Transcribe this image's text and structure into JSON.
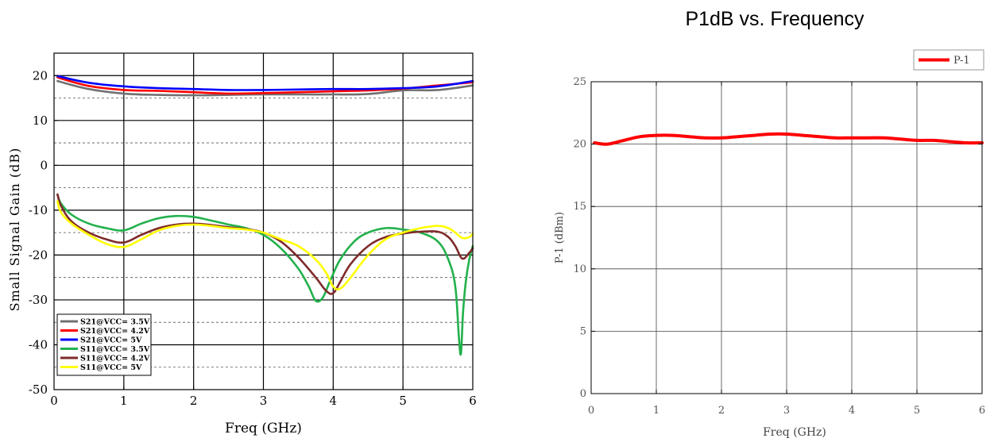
{
  "chart_data": [
    {
      "type": "line",
      "title": "",
      "xlabel": "Freq (GHz)",
      "ylabel": "Small Signal Gain (dB)",
      "xlim": [
        0,
        6
      ],
      "ylim": [
        -50,
        25
      ],
      "xticks": [
        "0",
        "1",
        "2",
        "3",
        "4",
        "5",
        "6"
      ],
      "yticks": [
        "-50",
        "-40",
        "-30",
        "-20",
        "-10",
        "0",
        "10",
        "20"
      ],
      "grid": true,
      "legend_position": "bottom-left",
      "series": [
        {
          "name": "S21@VCC= 3.5V",
          "color": "#707070",
          "x": [
            0.05,
            0.5,
            1,
            1.5,
            2,
            2.5,
            3,
            3.5,
            4,
            4.5,
            5,
            5.5,
            6
          ],
          "y": [
            18.8,
            17.0,
            16.0,
            15.7,
            15.6,
            15.7,
            15.8,
            15.8,
            15.8,
            15.9,
            16.7,
            16.8,
            17.8
          ]
        },
        {
          "name": "S21@VCC= 4.2V",
          "color": "#ff0000",
          "x": [
            0.05,
            0.5,
            1,
            1.5,
            2,
            2.5,
            3,
            3.5,
            4,
            4.5,
            5,
            5.5,
            6
          ],
          "y": [
            19.6,
            17.7,
            16.8,
            16.6,
            16.3,
            16.0,
            16.1,
            16.3,
            16.5,
            16.7,
            17.1,
            17.8,
            18.5
          ]
        },
        {
          "name": "S21@VCC= 5V",
          "color": "#0000ff",
          "x": [
            0.05,
            0.5,
            1,
            1.5,
            2,
            2.5,
            3,
            3.5,
            4,
            4.5,
            5,
            5.5,
            6
          ],
          "y": [
            19.9,
            18.4,
            17.6,
            17.2,
            17.0,
            16.8,
            16.8,
            16.9,
            17.0,
            17.0,
            17.2,
            17.6,
            18.8
          ]
        },
        {
          "name": "S11@VCC= 3.5V",
          "color": "#22b14c",
          "x": [
            0.05,
            0.1,
            0.25,
            0.5,
            0.75,
            1,
            1.25,
            1.5,
            1.75,
            2,
            2.25,
            2.5,
            2.75,
            3,
            3.25,
            3.5,
            3.65,
            3.75,
            3.85,
            3.95,
            4.1,
            4.3,
            4.5,
            4.75,
            5,
            5.25,
            5.5,
            5.65,
            5.75,
            5.8,
            5.83,
            5.86,
            5.9,
            5.95,
            6
          ],
          "y": [
            -6.5,
            -8.5,
            -11,
            -13,
            -14,
            -14.5,
            -13,
            -11.8,
            -11.3,
            -11.5,
            -12.3,
            -13.2,
            -14,
            -15.5,
            -18.5,
            -23,
            -27,
            -30.2,
            -29.5,
            -26,
            -21,
            -17,
            -15,
            -14,
            -14.3,
            -15,
            -17,
            -21,
            -27,
            -38,
            -42,
            -33,
            -26,
            -21,
            -18
          ]
        },
        {
          "name": "S11@VCC= 4.2V",
          "color": "#7f2a2a",
          "x": [
            0.05,
            0.1,
            0.25,
            0.5,
            0.75,
            1,
            1.25,
            1.5,
            1.75,
            2,
            2.25,
            2.5,
            2.75,
            3,
            3.25,
            3.5,
            3.75,
            3.9,
            4,
            4.1,
            4.25,
            4.5,
            4.75,
            5,
            5.25,
            5.5,
            5.65,
            5.75,
            5.85,
            5.95,
            6
          ],
          "y": [
            -6.5,
            -9,
            -12.5,
            -15,
            -16.5,
            -17.2,
            -15.5,
            -14,
            -13.2,
            -13,
            -13.3,
            -13.8,
            -14.2,
            -15,
            -17,
            -20.5,
            -25,
            -28,
            -28.5,
            -26,
            -22,
            -18,
            -16,
            -15.2,
            -14.8,
            -14.8,
            -16,
            -18,
            -20.8,
            -19.5,
            -18.5
          ]
        },
        {
          "name": "S11@VCC= 5V",
          "color": "#ffff00",
          "x": [
            0.05,
            0.1,
            0.25,
            0.5,
            0.75,
            1,
            1.25,
            1.5,
            1.75,
            2,
            2.25,
            2.5,
            2.75,
            3,
            3.25,
            3.5,
            3.75,
            3.9,
            4,
            4.1,
            4.25,
            4.5,
            4.75,
            5,
            5.25,
            5.5,
            5.65,
            5.75,
            5.85,
            5.95,
            6
          ],
          "y": [
            -8,
            -10.5,
            -13,
            -15.5,
            -17.5,
            -18.2,
            -16.5,
            -14.5,
            -13.5,
            -13.2,
            -13.5,
            -14,
            -14.3,
            -15,
            -16.5,
            -18,
            -21,
            -24,
            -27,
            -27.5,
            -25,
            -20,
            -16.5,
            -15,
            -14,
            -13.5,
            -14,
            -15,
            -16.2,
            -16,
            -15.2
          ]
        }
      ]
    },
    {
      "type": "line",
      "title": "P1dB vs. Frequency",
      "xlabel": "Freq (GHz)",
      "ylabel": "P-1 (dBm)",
      "xlim": [
        0,
        6
      ],
      "ylim": [
        0,
        25
      ],
      "xticks": [
        "0",
        "1",
        "2",
        "3",
        "4",
        "5",
        "6"
      ],
      "yticks": [
        "0",
        "5",
        "10",
        "15",
        "20",
        "25"
      ],
      "grid": true,
      "legend_position": "top-right",
      "series": [
        {
          "name": "P-1",
          "color": "#ff0000",
          "x": [
            0.05,
            0.25,
            0.5,
            0.75,
            1,
            1.25,
            1.5,
            1.75,
            2,
            2.25,
            2.5,
            2.75,
            3,
            3.25,
            3.5,
            3.75,
            4,
            4.25,
            4.5,
            4.75,
            5,
            5.25,
            5.5,
            5.75,
            6
          ],
          "y": [
            20.1,
            20.0,
            20.3,
            20.6,
            20.7,
            20.7,
            20.6,
            20.5,
            20.5,
            20.6,
            20.7,
            20.8,
            20.8,
            20.7,
            20.6,
            20.5,
            20.5,
            20.5,
            20.5,
            20.4,
            20.3,
            20.3,
            20.2,
            20.1,
            20.1
          ]
        }
      ]
    }
  ]
}
